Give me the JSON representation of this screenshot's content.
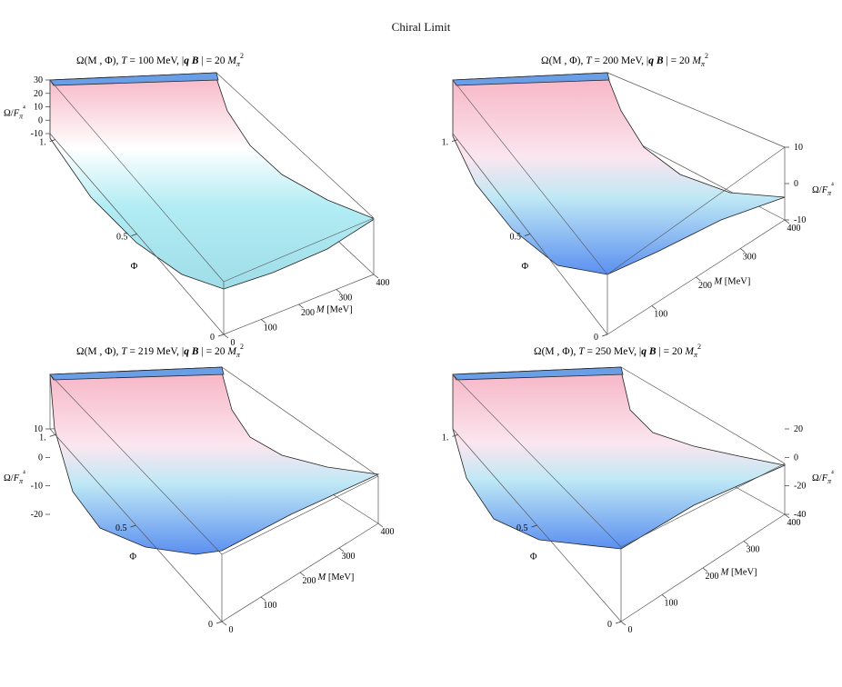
{
  "figure_title": "Chiral Limit",
  "colors": {
    "surface_top": "#f7b3c4",
    "surface_mid": "#ffffff",
    "surface_cyan": "#b2ecf4",
    "surface_blue": "#5b8ff0",
    "cap_blue": "#6a9ee6",
    "box_line": "#333333"
  },
  "chart_data": [
    {
      "type": "surface3d",
      "title": "Ω(M , Φ), T = 100 MeV, |q B | = 20 Mπ²",
      "title_parts": {
        "lead": "Ω(M , Φ), ",
        "T": "T",
        "eq": " = 100 MeV, |",
        "q": "q",
        "B": " B",
        "tail": " | = 20 ",
        "M": "M",
        "sub": "π",
        "sup": "2"
      },
      "x_axis": {
        "label": "M [MeV]",
        "range": [
          0,
          400
        ],
        "ticks": [
          "0",
          "100",
          "200",
          "300",
          "400"
        ]
      },
      "y_axis": {
        "label": "Φ",
        "range": [
          0,
          1
        ],
        "ticks": [
          "0",
          "0.5",
          "1."
        ]
      },
      "z_axis": {
        "label": "Ω/Fπ⁴",
        "range": [
          -18,
          30
        ],
        "ticks": [
          "30",
          "20",
          "10",
          "0",
          "-10"
        ]
      },
      "surface_samples": {
        "M": [
          0,
          50,
          100,
          150,
          200,
          250,
          300,
          350,
          400
        ],
        "Omega_at_Phi_0": [
          28,
          14,
          5,
          -1,
          -5,
          -8,
          -10,
          -11,
          -12
        ]
      }
    },
    {
      "type": "surface3d",
      "title": "Ω(M , Φ), T = 200 MeV, |q B | = 20 Mπ²",
      "title_parts": {
        "lead": "Ω(M , Φ), ",
        "T": "T",
        "eq": " = 200 MeV, |",
        "q": "q",
        "B": " B",
        "tail": " | = 20 ",
        "M": "M",
        "sub": "π",
        "sup": "2"
      },
      "x_axis": {
        "label": "M [MeV]",
        "range": [
          0,
          400
        ],
        "ticks": [
          "100",
          "200",
          "300",
          "400"
        ]
      },
      "y_axis": {
        "label": "Φ",
        "range": [
          0,
          1
        ],
        "ticks": [
          "0",
          "0.5",
          "1."
        ]
      },
      "z_axis": {
        "label": "Ω/Fπ⁴",
        "range": [
          -20,
          14
        ],
        "ticks": [
          "10",
          "0",
          "-10"
        ]
      },
      "surface_samples": {
        "M": [
          0,
          50,
          100,
          150,
          200,
          250,
          300,
          350,
          400
        ],
        "Omega_at_Phi_0": [
          12,
          -6,
          -16,
          -20,
          -19,
          -17,
          -15,
          -14,
          -12
        ]
      }
    },
    {
      "type": "surface3d",
      "title": "Ω(M , Φ), T = 219 MeV, |q B | = 20 Mπ²",
      "title_parts": {
        "lead": "Ω(M , Φ), ",
        "T": "T",
        "eq": " = 219 MeV, |",
        "q": "q",
        "B": " B",
        "tail": " | = 20 ",
        "M": "M",
        "sub": "π",
        "sup": "2"
      },
      "x_axis": {
        "label": "M [MeV]",
        "range": [
          0,
          400
        ],
        "ticks": [
          "0",
          "100",
          "200",
          "300",
          "400"
        ]
      },
      "y_axis": {
        "label": "Φ",
        "range": [
          0,
          1
        ],
        "ticks": [
          "0",
          "0.5",
          "1."
        ]
      },
      "z_axis": {
        "label": "Ω/Fπ⁴",
        "range": [
          -28,
          16
        ],
        "ticks": [
          "10",
          "0",
          "-10",
          "-20"
        ]
      },
      "surface_samples": {
        "M": [
          0,
          50,
          100,
          150,
          200,
          250,
          300,
          350
        ],
        "Omega_at_Phi_0": [
          12,
          -8,
          -18,
          -22,
          -22,
          -19,
          -16,
          -12
        ]
      }
    },
    {
      "type": "surface3d",
      "title": "Ω(M , Φ), T = 250 MeV, |q B | = 20 Mπ²",
      "title_parts": {
        "lead": "Ω(M , Φ), ",
        "T": "T",
        "eq": " = 250 MeV, |",
        "q": "q",
        "B": " B",
        "tail": " | = 20 ",
        "M": "M",
        "sub": "π",
        "sup": "2"
      },
      "x_axis": {
        "label": "M [MeV]",
        "range": [
          0,
          400
        ],
        "ticks": [
          "0",
          "100",
          "200",
          "300",
          "400"
        ]
      },
      "y_axis": {
        "label": "Φ",
        "range": [
          0,
          1
        ],
        "ticks": [
          "0",
          "0.5",
          "1."
        ]
      },
      "z_axis": {
        "label": "Ω/Fπ⁴",
        "range": [
          -45,
          30
        ],
        "ticks": [
          "20",
          "0",
          "-20",
          "-40"
        ]
      },
      "surface_samples": {
        "M": [
          0,
          50,
          100,
          150,
          200,
          250,
          300,
          350,
          400
        ],
        "Omega_at_Phi_0": [
          22,
          -18,
          -32,
          -36,
          -35,
          -33,
          -30,
          -28,
          -25
        ]
      }
    }
  ]
}
